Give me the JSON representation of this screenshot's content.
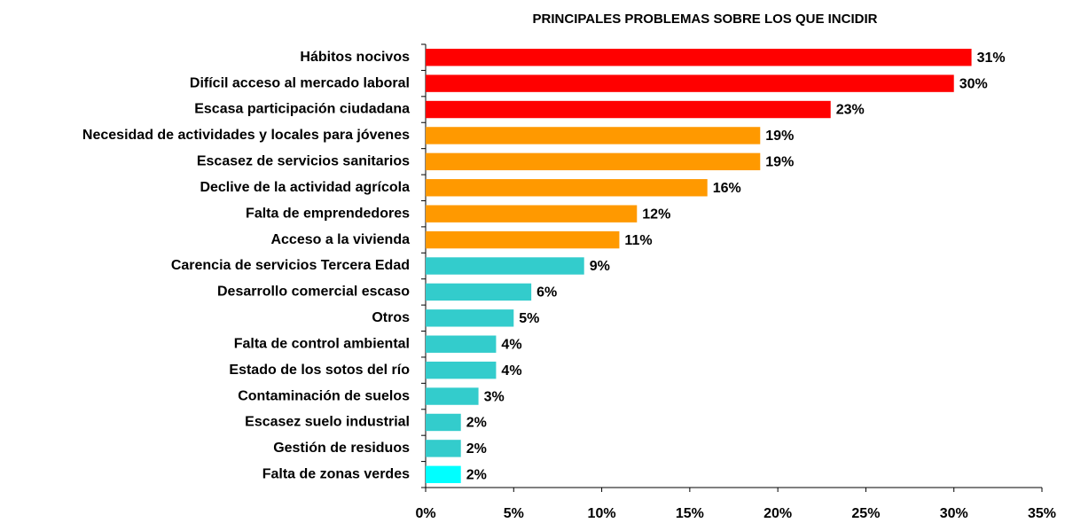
{
  "chart_data": {
    "type": "hbar",
    "title": "PRINCIPALES PROBLEMAS SOBRE LOS QUE INCIDIR",
    "categories": [
      "Hábitos nocivos",
      "Difícil acceso al mercado laboral",
      "Escasa participación ciudadana",
      "Necesidad de actividades y locales para jóvenes",
      "Escasez de servicios sanitarios",
      "Declive de la actividad agrícola",
      "Falta de emprendedores",
      "Acceso a la vivienda",
      "Carencia de servicios Tercera Edad",
      "Desarrollo comercial escaso",
      "Otros",
      "Falta de control ambiental",
      "Estado de los sotos del río",
      "Contaminación de suelos",
      "Escasez suelo industrial",
      "Gestión de residuos",
      "Falta de zonas verdes"
    ],
    "values": [
      31,
      30,
      23,
      19,
      19,
      16,
      12,
      11,
      9,
      6,
      5,
      4,
      4,
      3,
      2,
      2,
      2
    ],
    "value_labels": [
      "31%",
      "30%",
      "23%",
      "19%",
      "19%",
      "16%",
      "12%",
      "11%",
      "9%",
      "6%",
      "5%",
      "4%",
      "4%",
      "3%",
      "2%",
      "2%",
      "2%"
    ],
    "colors": [
      "#ff0000",
      "#ff0000",
      "#ff0000",
      "#ff9900",
      "#ff9900",
      "#ff9900",
      "#ff9900",
      "#ff9900",
      "#33cccc",
      "#33cccc",
      "#33cccc",
      "#33cccc",
      "#33cccc",
      "#33cccc",
      "#33cccc",
      "#33cccc",
      "#00ffff"
    ],
    "xlim": [
      0,
      35
    ],
    "xticks": [
      {
        "value": 0,
        "label": "0%"
      },
      {
        "value": 5,
        "label": "5%"
      },
      {
        "value": 10,
        "label": "10%"
      },
      {
        "value": 15,
        "label": "15%"
      },
      {
        "value": 20,
        "label": "20%"
      },
      {
        "value": 25,
        "label": "25%"
      },
      {
        "value": 30,
        "label": "30%"
      },
      {
        "value": 35,
        "label": "35%"
      }
    ],
    "grid": false
  }
}
